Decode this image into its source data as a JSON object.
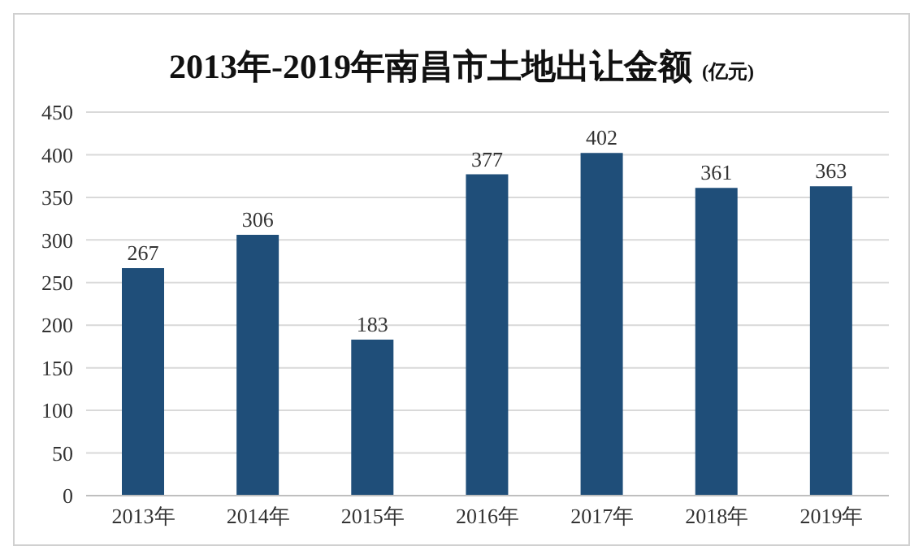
{
  "chart_data": {
    "type": "bar",
    "title": "2013年-2019年南昌市土地出让金额",
    "subtitle": "(亿元)",
    "categories": [
      "2013年",
      "2014年",
      "2015年",
      "2016年",
      "2017年",
      "2018年",
      "2019年"
    ],
    "values": [
      267,
      306,
      183,
      377,
      402,
      361,
      363
    ],
    "color": "#1f4e79",
    "ylim": [
      0,
      450
    ],
    "yticks": [
      0,
      50,
      100,
      150,
      200,
      250,
      300,
      350,
      400,
      450
    ],
    "grid": "y",
    "data_labels": true
  }
}
